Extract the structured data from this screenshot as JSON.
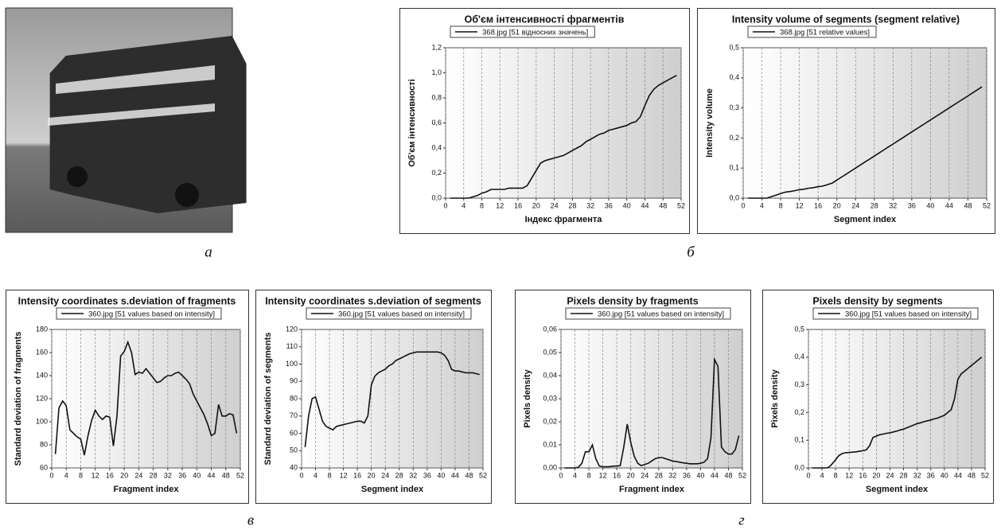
{
  "captions": [
    "а",
    "б",
    "в",
    "г"
  ],
  "chart_data": [
    {
      "type": "line",
      "title": "Об'єм інтенсивності фрагментів",
      "xlabel": "Індекс фрагмента",
      "ylabel": "Об'єм інтенсивності",
      "x": [
        1,
        2,
        3,
        4,
        5,
        6,
        7,
        8,
        9,
        10,
        11,
        12,
        13,
        14,
        15,
        16,
        17,
        18,
        19,
        20,
        21,
        22,
        23,
        24,
        25,
        26,
        27,
        28,
        29,
        30,
        31,
        32,
        33,
        34,
        35,
        36,
        37,
        38,
        39,
        40,
        41,
        42,
        43,
        44,
        45,
        46,
        47,
        48,
        49,
        50,
        51
      ],
      "series": [
        {
          "name": "368.jpg [51 відносних значень]",
          "color": "#111111",
          "values": [
            0,
            0,
            0,
            0,
            0,
            0.01,
            0.02,
            0.04,
            0.05,
            0.07,
            0.07,
            0.07,
            0.07,
            0.08,
            0.08,
            0.08,
            0.08,
            0.1,
            0.16,
            0.22,
            0.28,
            0.3,
            0.31,
            0.32,
            0.33,
            0.34,
            0.36,
            0.38,
            0.4,
            0.42,
            0.45,
            0.47,
            0.49,
            0.51,
            0.52,
            0.54,
            0.55,
            0.56,
            0.57,
            0.58,
            0.6,
            0.61,
            0.65,
            0.74,
            0.82,
            0.87,
            0.9,
            0.92,
            0.94,
            0.96,
            0.98
          ]
        }
      ],
      "xlim": [
        0,
        52
      ],
      "xticks": [
        0,
        4,
        8,
        12,
        16,
        20,
        24,
        28,
        32,
        36,
        40,
        44,
        48,
        52
      ],
      "ylim": [
        0,
        1.2
      ],
      "yticks": [
        {
          "value": 0,
          "label": "0,0"
        },
        {
          "value": 0.2,
          "label": "0,2"
        },
        {
          "value": 0.4,
          "label": "0,4"
        },
        {
          "value": 0.6,
          "label": "0,6"
        },
        {
          "value": 0.8,
          "label": "0,8"
        },
        {
          "value": 1,
          "label": "1,0"
        },
        {
          "value": 1.2,
          "label": "1,2"
        }
      ],
      "grid": true
    },
    {
      "type": "line",
      "title": "Intensity volume of segments (segment relative)",
      "xlabel": "Segment index",
      "ylabel": "Intensity volume",
      "x": [
        1,
        2,
        3,
        4,
        5,
        6,
        7,
        8,
        9,
        10,
        11,
        12,
        13,
        14,
        15,
        16,
        17,
        18,
        19,
        20,
        21,
        22,
        23,
        24,
        25,
        26,
        27,
        28,
        29,
        30,
        31,
        32,
        33,
        34,
        35,
        36,
        37,
        38,
        39,
        40,
        41,
        42,
        43,
        44,
        45,
        46,
        47,
        48,
        49,
        50,
        51
      ],
      "series": [
        {
          "name": "368.jpg [51 relative values]",
          "color": "#111111",
          "values": [
            0,
            0,
            0,
            0,
            0,
            0.005,
            0.01,
            0.015,
            0.02,
            0.022,
            0.025,
            0.028,
            0.03,
            0.033,
            0.035,
            0.038,
            0.04,
            0.045,
            0.05,
            0.06,
            0.07,
            0.08,
            0.09,
            0.1,
            0.11,
            0.12,
            0.13,
            0.14,
            0.15,
            0.16,
            0.17,
            0.18,
            0.19,
            0.2,
            0.21,
            0.22,
            0.23,
            0.24,
            0.25,
            0.26,
            0.27,
            0.28,
            0.29,
            0.3,
            0.31,
            0.32,
            0.33,
            0.34,
            0.35,
            0.36,
            0.37
          ]
        }
      ],
      "xlim": [
        0,
        52
      ],
      "xticks": [
        0,
        4,
        8,
        12,
        16,
        20,
        24,
        28,
        32,
        36,
        40,
        44,
        48,
        52
      ],
      "ylim": [
        0,
        0.5
      ],
      "yticks": [
        {
          "value": 0,
          "label": "0,0"
        },
        {
          "value": 0.1,
          "label": "0,1"
        },
        {
          "value": 0.2,
          "label": "0,2"
        },
        {
          "value": 0.3,
          "label": "0,3"
        },
        {
          "value": 0.4,
          "label": "0,4"
        },
        {
          "value": 0.5,
          "label": "0,5"
        }
      ],
      "grid": true
    },
    {
      "type": "line",
      "title": "Intensity coordinates s.deviation of fragments",
      "xlabel": "Fragment index",
      "ylabel": "Standard deviation of fragments",
      "x": [
        1,
        2,
        3,
        4,
        5,
        6,
        7,
        8,
        9,
        10,
        11,
        12,
        13,
        14,
        15,
        16,
        17,
        18,
        19,
        20,
        21,
        22,
        23,
        24,
        25,
        26,
        27,
        28,
        29,
        30,
        31,
        32,
        33,
        34,
        35,
        36,
        37,
        38,
        39,
        40,
        41,
        42,
        43,
        44,
        45,
        46,
        47,
        48,
        49,
        50,
        51
      ],
      "series": [
        {
          "name": "360.jpg [51 values based on intensity]",
          "color": "#111111",
          "values": [
            72,
            112,
            118,
            114,
            93,
            90,
            87,
            85,
            71,
            88,
            101,
            110,
            105,
            102,
            105,
            104,
            79,
            105,
            157,
            161,
            169,
            160,
            141,
            143,
            142,
            146,
            142,
            138,
            134,
            135,
            138,
            140,
            140,
            142,
            143,
            140,
            137,
            133,
            124,
            118,
            112,
            106,
            98,
            88,
            90,
            115,
            105,
            105,
            107,
            106,
            90
          ]
        }
      ],
      "xlim": [
        0,
        52
      ],
      "xticks": [
        0,
        4,
        8,
        12,
        16,
        20,
        24,
        28,
        32,
        36,
        40,
        44,
        48,
        52
      ],
      "ylim": [
        60,
        180
      ],
      "yticks": [
        60,
        80,
        100,
        120,
        140,
        160,
        180
      ],
      "grid": true
    },
    {
      "type": "line",
      "title": "Intensity coordinates s.deviation of segments",
      "xlabel": "Segment index",
      "ylabel": "Standard deviation of segments",
      "x": [
        1,
        2,
        3,
        4,
        5,
        6,
        7,
        8,
        9,
        10,
        11,
        12,
        13,
        14,
        15,
        16,
        17,
        18,
        19,
        20,
        21,
        22,
        23,
        24,
        25,
        26,
        27,
        28,
        29,
        30,
        31,
        32,
        33,
        34,
        35,
        36,
        37,
        38,
        39,
        40,
        41,
        42,
        43,
        44,
        45,
        46,
        47,
        48,
        49,
        50,
        51
      ],
      "series": [
        {
          "name": "360.jpg [51 values based on intensity]",
          "color": "#111111",
          "values": [
            52,
            70,
            80,
            81,
            74,
            67,
            64,
            63,
            62,
            64,
            64.5,
            65,
            65.5,
            66,
            66.5,
            67,
            67,
            66,
            70,
            88,
            93,
            95,
            96,
            97,
            99,
            100,
            102,
            103,
            104,
            105,
            106,
            106.5,
            107,
            107,
            107,
            107,
            107,
            107,
            107,
            106.5,
            105,
            102,
            97,
            96,
            96,
            95.5,
            95,
            95,
            95,
            94.5,
            94
          ]
        }
      ],
      "xlim": [
        0,
        52
      ],
      "xticks": [
        0,
        4,
        8,
        12,
        16,
        20,
        24,
        28,
        32,
        36,
        40,
        44,
        48,
        52
      ],
      "ylim": [
        40,
        120
      ],
      "yticks": [
        40,
        50,
        60,
        70,
        80,
        90,
        100,
        110,
        120
      ],
      "grid": true
    },
    {
      "type": "line",
      "title": "Pixels density by fragments",
      "xlabel": "Fragment index",
      "ylabel": "Pixels density",
      "x": [
        1,
        2,
        3,
        4,
        5,
        6,
        7,
        8,
        9,
        10,
        11,
        12,
        13,
        14,
        15,
        16,
        17,
        18,
        19,
        20,
        21,
        22,
        23,
        24,
        25,
        26,
        27,
        28,
        29,
        30,
        31,
        32,
        33,
        34,
        35,
        36,
        37,
        38,
        39,
        40,
        41,
        42,
        43,
        44,
        45,
        46,
        47,
        48,
        49,
        50,
        51
      ],
      "series": [
        {
          "name": "360.jpg [51 values based on intensity]",
          "color": "#111111",
          "values": [
            0,
            0,
            0,
            0,
            0.0003,
            0.002,
            0.007,
            0.007,
            0.01,
            0.004,
            0.0008,
            0.0005,
            0.0005,
            0.0006,
            0.0008,
            0.0008,
            0.001,
            0.009,
            0.019,
            0.011,
            0.005,
            0.002,
            0.001,
            0.0015,
            0.002,
            0.003,
            0.004,
            0.0045,
            0.0045,
            0.004,
            0.0035,
            0.003,
            0.0028,
            0.0025,
            0.0022,
            0.002,
            0.0018,
            0.0018,
            0.0018,
            0.002,
            0.0025,
            0.004,
            0.013,
            0.047,
            0.044,
            0.009,
            0.007,
            0.006,
            0.006,
            0.008,
            0.014
          ]
        }
      ],
      "xlim": [
        0,
        52
      ],
      "xticks": [
        0,
        4,
        8,
        12,
        16,
        20,
        24,
        28,
        32,
        36,
        40,
        44,
        48,
        52
      ],
      "ylim": [
        0,
        0.06
      ],
      "yticks": [
        {
          "value": 0,
          "label": "0,00"
        },
        {
          "value": 0.01,
          "label": "0,01"
        },
        {
          "value": 0.02,
          "label": "0,02"
        },
        {
          "value": 0.03,
          "label": "0,03"
        },
        {
          "value": 0.04,
          "label": "0,04"
        },
        {
          "value": 0.05,
          "label": "0,05"
        },
        {
          "value": 0.06,
          "label": "0,06"
        }
      ],
      "grid": true
    },
    {
      "type": "line",
      "title": "Pixels density by segments",
      "xlabel": "Segment index",
      "ylabel": "Pixels density",
      "x": [
        1,
        2,
        3,
        4,
        5,
        6,
        7,
        8,
        9,
        10,
        11,
        12,
        13,
        14,
        15,
        16,
        17,
        18,
        19,
        20,
        21,
        22,
        23,
        24,
        25,
        26,
        27,
        28,
        29,
        30,
        31,
        32,
        33,
        34,
        35,
        36,
        37,
        38,
        39,
        40,
        41,
        42,
        43,
        44,
        45,
        46,
        47,
        48,
        49,
        50,
        51
      ],
      "series": [
        {
          "name": "360.jpg [51 values based on intensity]",
          "color": "#111111",
          "values": [
            0,
            0,
            0,
            0,
            0,
            0.002,
            0.015,
            0.03,
            0.045,
            0.052,
            0.055,
            0.056,
            0.057,
            0.058,
            0.06,
            0.062,
            0.065,
            0.08,
            0.11,
            0.115,
            0.12,
            0.122,
            0.125,
            0.127,
            0.13,
            0.133,
            0.137,
            0.14,
            0.145,
            0.15,
            0.155,
            0.16,
            0.163,
            0.167,
            0.17,
            0.173,
            0.177,
            0.18,
            0.185,
            0.19,
            0.2,
            0.21,
            0.25,
            0.32,
            0.34,
            0.35,
            0.36,
            0.37,
            0.38,
            0.39,
            0.4
          ]
        }
      ],
      "xlim": [
        0,
        52
      ],
      "xticks": [
        0,
        4,
        8,
        12,
        16,
        20,
        24,
        28,
        32,
        36,
        40,
        44,
        48,
        52
      ],
      "ylim": [
        0,
        0.5
      ],
      "yticks": [
        {
          "value": 0,
          "label": "0,0"
        },
        {
          "value": 0.1,
          "label": "0,1"
        },
        {
          "value": 0.2,
          "label": "0,2"
        },
        {
          "value": 0.3,
          "label": "0,3"
        },
        {
          "value": 0.4,
          "label": "0,4"
        },
        {
          "value": 0.5,
          "label": "0,5"
        }
      ],
      "grid": true
    }
  ]
}
